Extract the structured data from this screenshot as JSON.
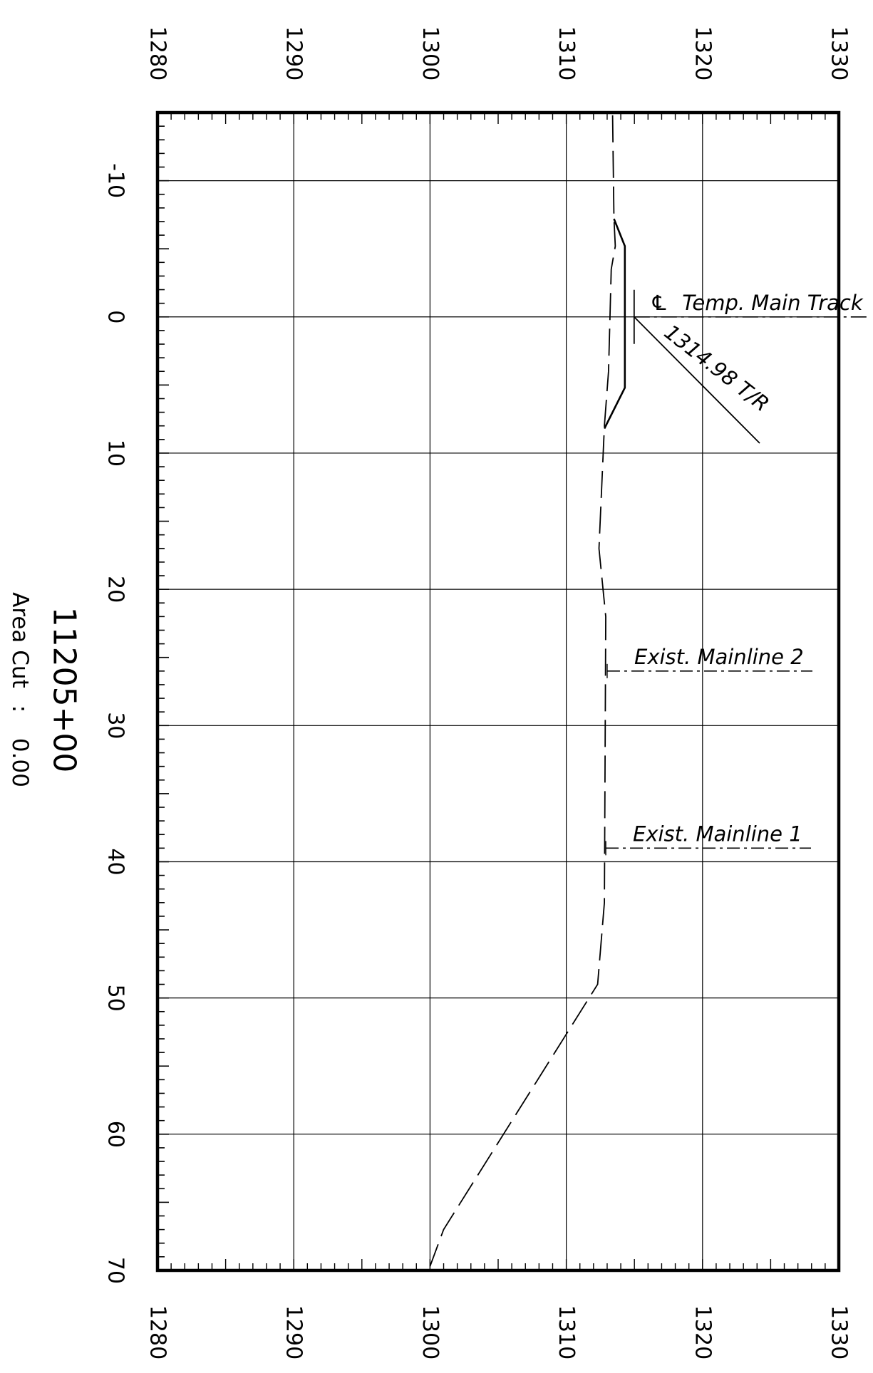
{
  "section": {
    "station": "11205+00",
    "area_label": "Area Cut",
    "area_sep": ":",
    "area_value": "0.00"
  },
  "elevation_axis": {
    "min": 1280,
    "max": 1330,
    "ticks": [
      "1280",
      "1290",
      "1300",
      "1310",
      "1320",
      "1330"
    ]
  },
  "offset_axis": {
    "min": -15,
    "max": 70,
    "ticks": [
      "-10",
      "0",
      "10",
      "20",
      "30",
      "40",
      "50",
      "60",
      "70"
    ]
  },
  "annotations": {
    "centerline_symbol": "℄",
    "centerline": "Temp. Main Track",
    "top_of_rail": "1314.98 T/R",
    "mainline2": "Exist. Mainline 2",
    "mainline1": "Exist. Mainline 1"
  },
  "chart_data": {
    "type": "line",
    "title": "11205+00",
    "xlabel": "",
    "ylabel": "",
    "x_axis": {
      "name": "offset",
      "range": [
        -15,
        70
      ],
      "tick_step": 10,
      "minor_step": 1
    },
    "y_axis": {
      "name": "elevation",
      "range": [
        1280,
        1330
      ],
      "tick_step": 10
    },
    "grid": true,
    "series": [
      {
        "style": "dashed",
        "points": [
          [
            -14.8,
            1313.4
          ],
          [
            -7.2,
            1313.5
          ],
          [
            -5.2,
            1313.6
          ],
          [
            -3.5,
            1313.3
          ],
          [
            4.0,
            1313.1
          ],
          [
            8.0,
            1312.8
          ],
          [
            17.0,
            1312.4
          ],
          [
            22.0,
            1312.9
          ],
          [
            43.0,
            1312.8
          ],
          [
            49.0,
            1312.3
          ],
          [
            67.0,
            1301.0
          ],
          [
            69.7,
            1300.0
          ]
        ]
      },
      {
        "style": "solid",
        "points": [
          [
            -7.2,
            1313.5
          ],
          [
            -5.2,
            1314.3
          ],
          [
            5.2,
            1314.3
          ],
          [
            8.2,
            1312.8
          ]
        ]
      }
    ],
    "annotations": [
      {
        "text": "℄ Temp. Main Track",
        "x": 0,
        "y": 1314.98
      },
      {
        "text": "1314.98 T/R",
        "x": 0,
        "y": 1314.98
      },
      {
        "text": "Exist. Mainline 2",
        "x": 26,
        "y": 1313.0
      },
      {
        "text": "Exist. Mainline 1",
        "x": 39,
        "y": 1312.9
      }
    ],
    "area_cut": 0.0
  }
}
